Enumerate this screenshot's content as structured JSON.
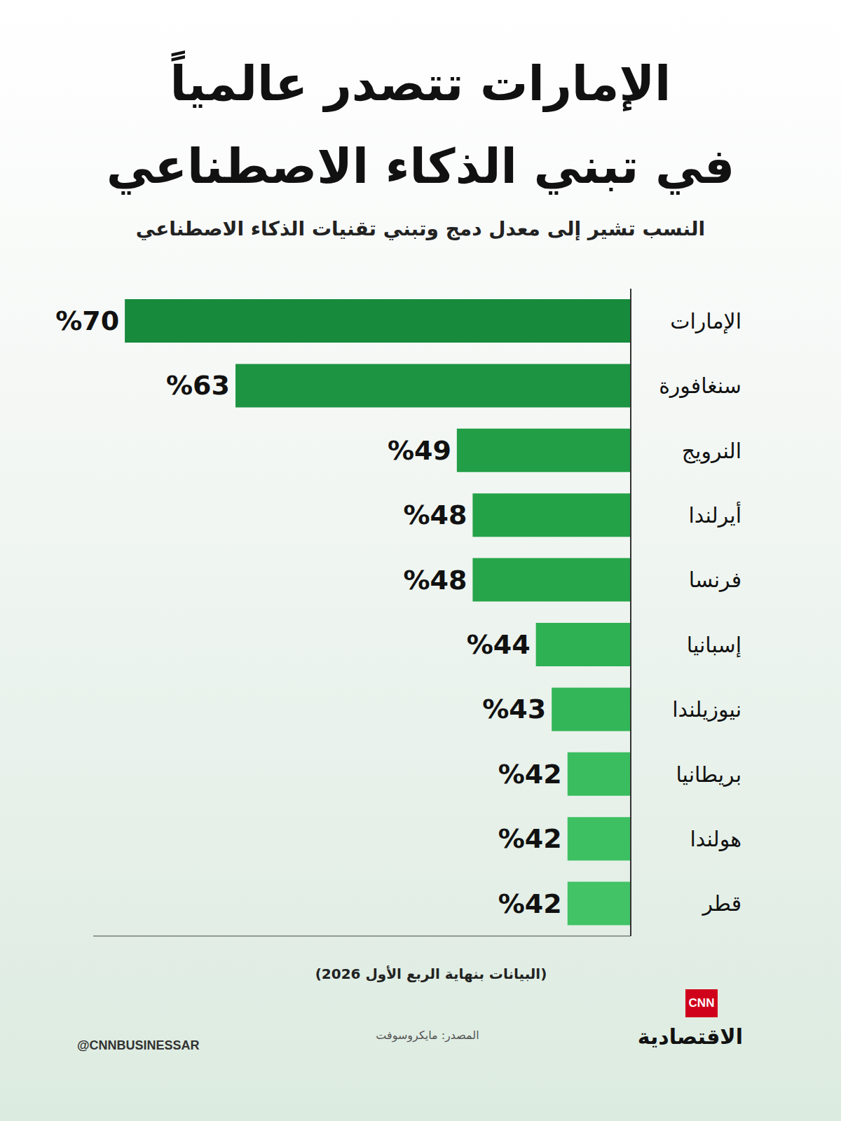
{
  "chart_data": {
    "type": "bar",
    "title": "الإمارات تتصدر عالمياً\nفي تبني الذكاء الاصطناعي",
    "subtitle": "النسب تشير إلى معدل دمج وتبني تقنيات الذكاء الاصطناعي",
    "categories": [
      "الإمارات",
      "سنغافورة",
      "النرويج",
      "أيرلندا",
      "فرنسا",
      "إسبانيا",
      "نيوزيلندا",
      "بريطانيا",
      "هولندا",
      "قطر"
    ],
    "values": [
      70,
      63,
      49,
      48,
      48,
      44,
      43,
      42,
      42,
      42
    ],
    "value_labels": [
      "%70",
      "%63",
      "%49",
      "%48",
      "%48",
      "%44",
      "%43",
      "%42",
      "%42",
      "%42"
    ],
    "colors": [
      "#178a3c",
      "#1c9441",
      "#229e46",
      "#24a248",
      "#26a54a",
      "#2eb153",
      "#32b657",
      "#3abd5f",
      "#3dc062",
      "#41c366"
    ],
    "orientation": "horizontal",
    "xlim": [
      38,
      72
    ],
    "xticks": [],
    "tick_labels": "y",
    "grid": false,
    "data_labels": true,
    "note": "(البيانات بنهاية الربع الأول 2026)",
    "source": "المصدر: مايكروسوفت"
  },
  "branding": {
    "logo": "CNN",
    "name": "الاقتصادية",
    "handle": "@CNNBUSINESSAR"
  }
}
